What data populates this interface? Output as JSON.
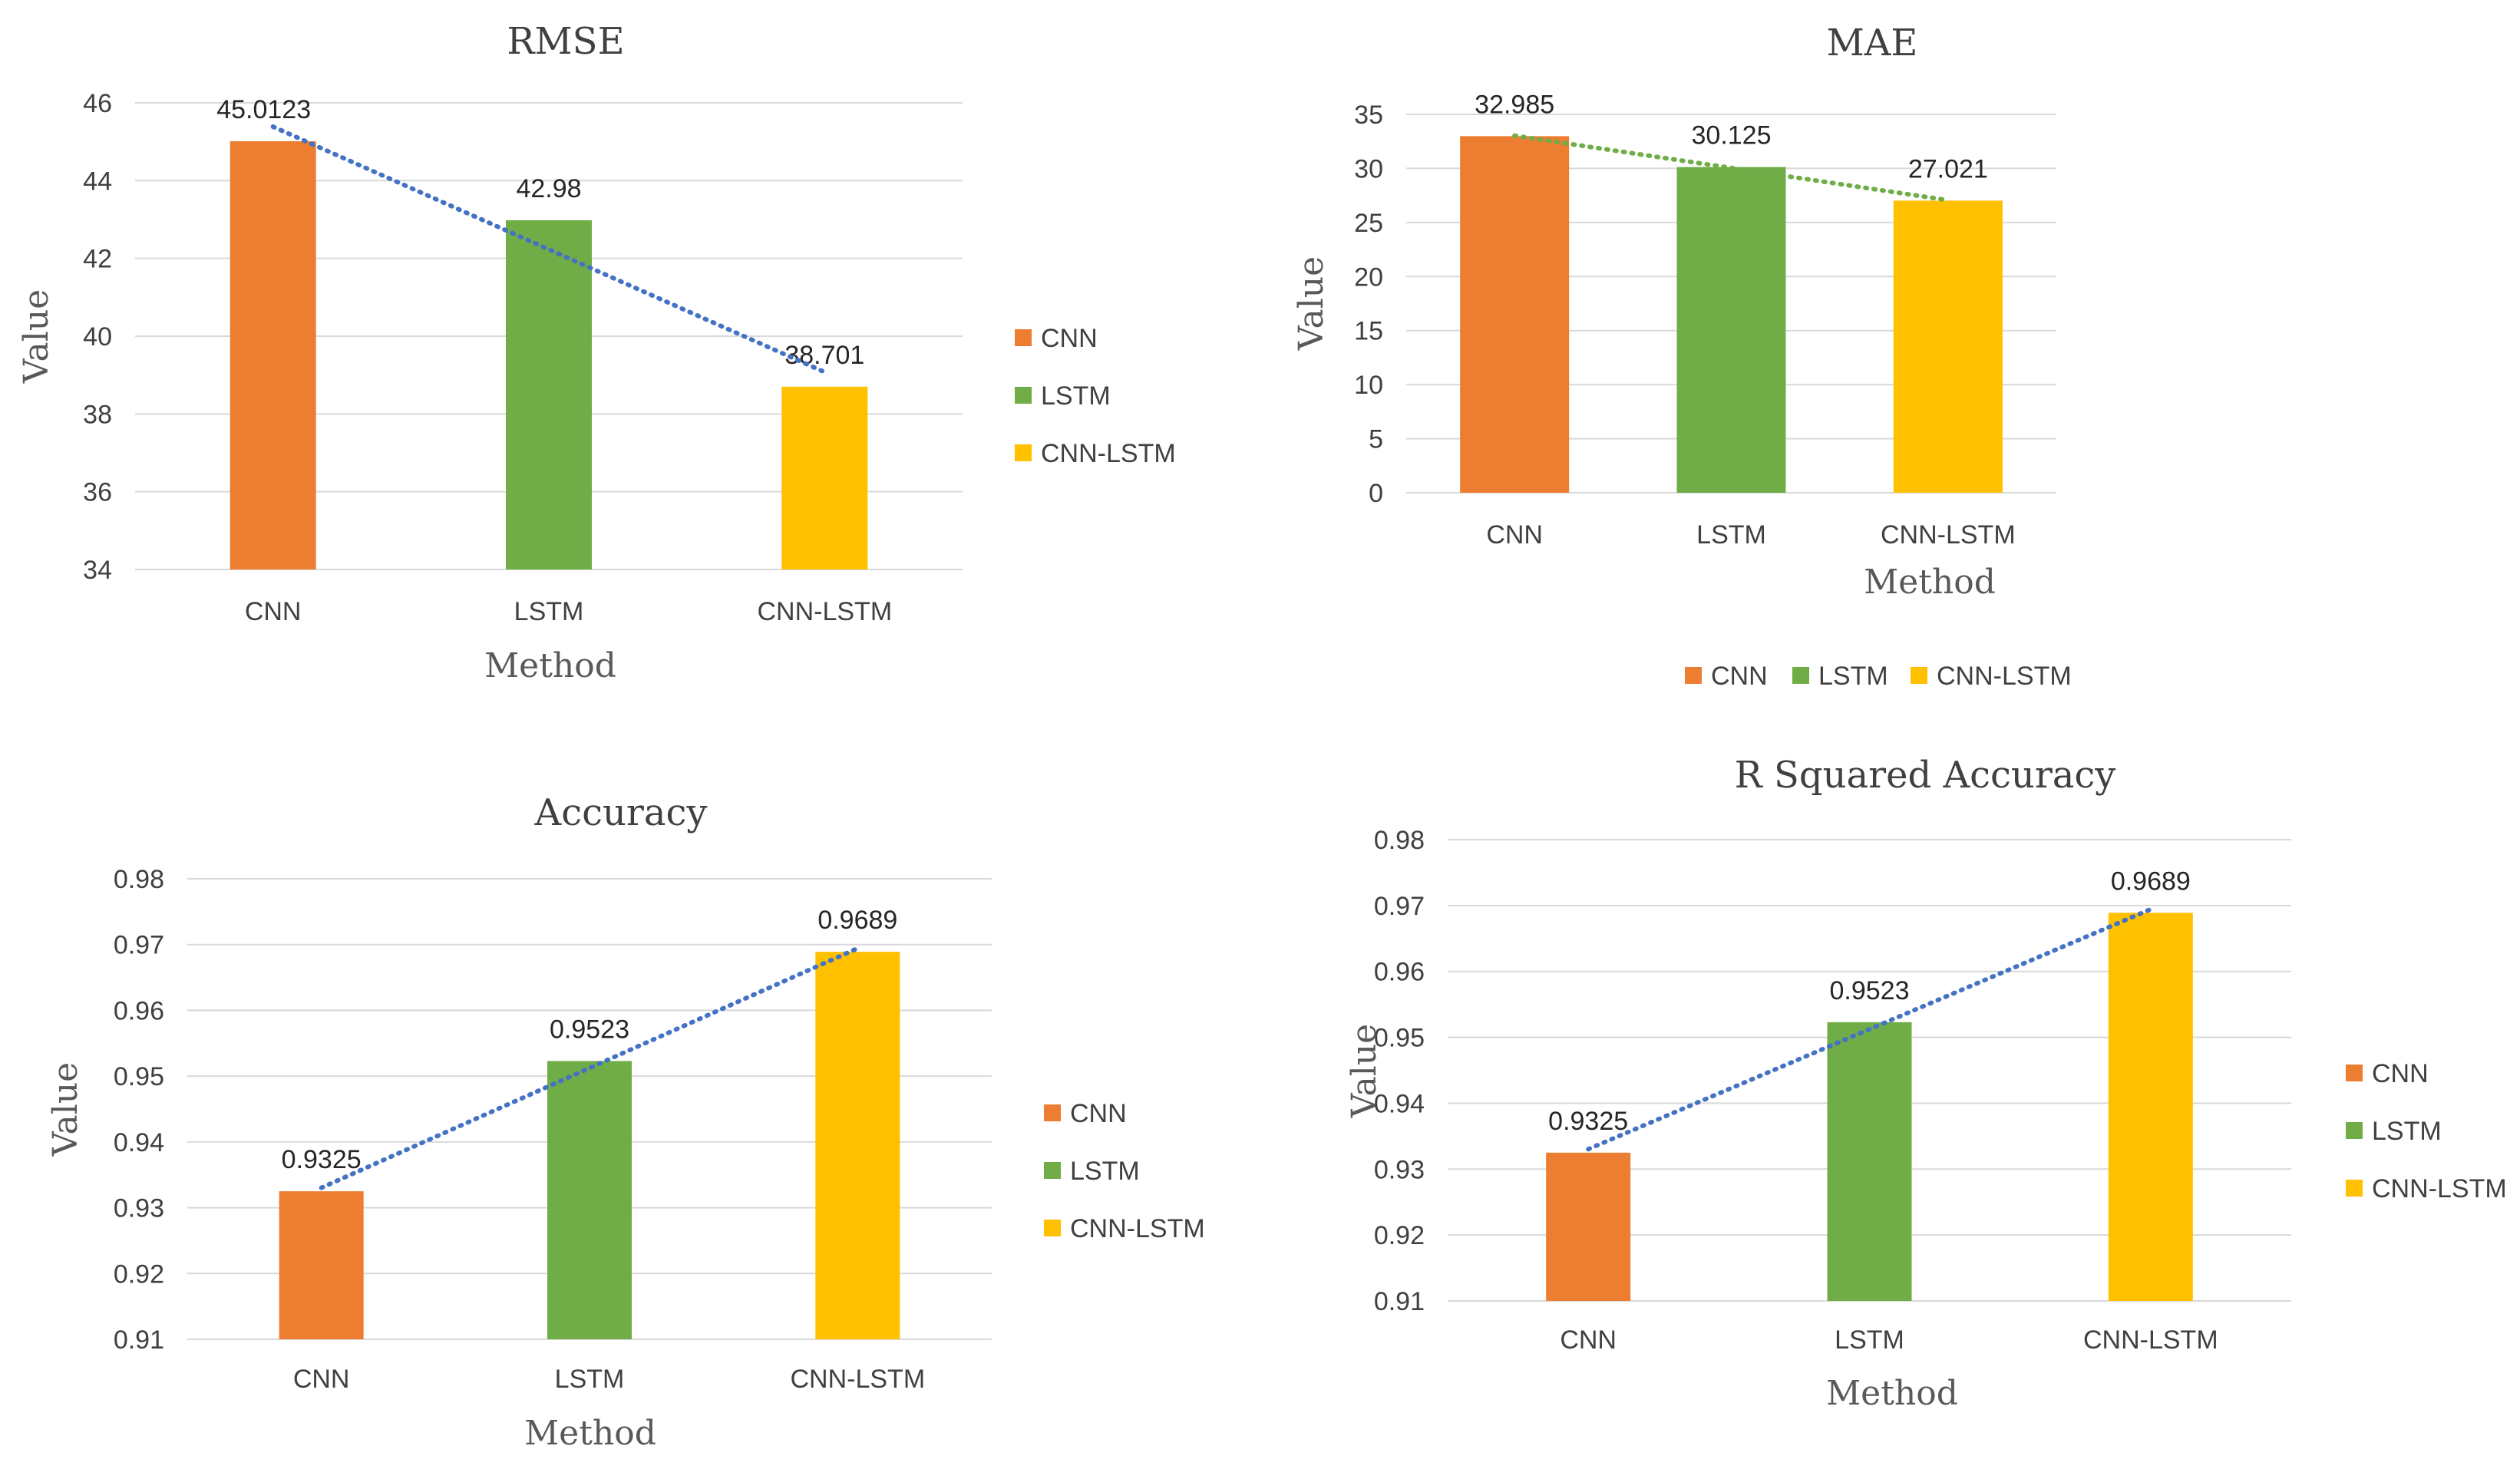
{
  "colors": {
    "CNN": "#ed7d31",
    "LSTM": "#70ad47",
    "CNN-LSTM": "#ffc000",
    "trend_blue": "#4472c4",
    "trend_green": "#70ad47"
  },
  "chart_data": [
    {
      "type": "bar",
      "title": "RMSE",
      "xlabel": "Method",
      "ylabel": "Value",
      "categories": [
        "CNN",
        "LSTM",
        "CNN-LSTM"
      ],
      "values": [
        45.0123,
        42.98,
        38.701
      ],
      "value_labels": [
        "45.0123",
        "42.98",
        "38.701"
      ],
      "ylim": [
        34,
        46
      ],
      "yticks": [
        "34",
        "36",
        "38",
        "40",
        "42",
        "44",
        "46"
      ],
      "grid": true,
      "legend": "right",
      "legend_entries": [
        "CNN",
        "LSTM",
        "CNN-LSTM"
      ],
      "trendline": "linear",
      "trend_color": "blue"
    },
    {
      "type": "bar",
      "title": "MAE",
      "xlabel": "Method",
      "ylabel": "Value",
      "categories": [
        "CNN",
        "LSTM",
        "CNN-LSTM"
      ],
      "values": [
        32.985,
        30.125,
        27.021
      ],
      "value_labels": [
        "32.985",
        "30.125",
        "27.021"
      ],
      "ylim": [
        0,
        35
      ],
      "yticks": [
        "0",
        "5",
        "10",
        "15",
        "20",
        "25",
        "30",
        "35"
      ],
      "grid": true,
      "legend": "bottom",
      "legend_entries": [
        "CNN",
        "LSTM",
        "CNN-LSTM"
      ],
      "trendline": "linear",
      "trend_color": "green"
    },
    {
      "type": "bar",
      "title": "Accuracy",
      "xlabel": "Method",
      "ylabel": "Value",
      "categories": [
        "CNN",
        "LSTM",
        "CNN-LSTM"
      ],
      "values": [
        0.9325,
        0.9523,
        0.9689
      ],
      "value_labels": [
        "0.9325",
        "0.9523",
        "0.9689"
      ],
      "ylim": [
        0.91,
        0.98
      ],
      "yticks": [
        "0.91",
        "0.92",
        "0.93",
        "0.94",
        "0.95",
        "0.96",
        "0.97",
        "0.98"
      ],
      "grid": true,
      "legend": "right",
      "legend_entries": [
        "CNN",
        "LSTM",
        "CNN-LSTM"
      ],
      "trendline": "linear",
      "trend_color": "blue"
    },
    {
      "type": "bar",
      "title": "R Squared Accuracy",
      "xlabel": "Method",
      "ylabel": "Value",
      "categories": [
        "CNN",
        "LSTM",
        "CNN-LSTM"
      ],
      "values": [
        0.9325,
        0.9523,
        0.9689
      ],
      "value_labels": [
        "0.9325",
        "0.9523",
        "0.9689"
      ],
      "ylim": [
        0.91,
        0.98
      ],
      "yticks": [
        "0.91",
        "0.92",
        "0.93",
        "0.94",
        "0.95",
        "0.96",
        "0.97",
        "0.98"
      ],
      "grid": true,
      "legend": "right",
      "legend_entries": [
        "CNN",
        "LSTM",
        "CNN-LSTM"
      ],
      "trendline": "linear",
      "trend_color": "blue"
    }
  ]
}
